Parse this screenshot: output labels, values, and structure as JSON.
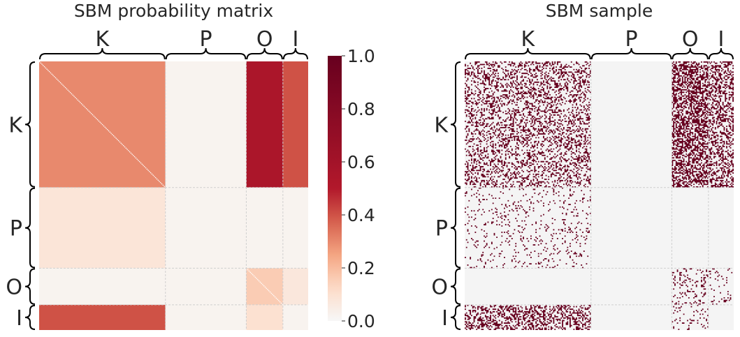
{
  "chart_data": [
    {
      "type": "heatmap",
      "title": "SBM probability matrix",
      "blocks": [
        "K",
        "P",
        "O",
        "I"
      ],
      "block_sizes": [
        100,
        64,
        29,
        20
      ],
      "matrix": [
        [
          0.3,
          0.02,
          0.55,
          0.4
        ],
        [
          0.08,
          0.02,
          0.02,
          0.02
        ],
        [
          0.02,
          0.02,
          0.16,
          0.07
        ],
        [
          0.4,
          0.02,
          0.1,
          0.02
        ]
      ],
      "self_loops_excluded": true,
      "colormap": "RdBu_r (upper half)",
      "colorbar": {
        "min": 0.0,
        "max": 1.0,
        "ticks": [
          "0.0",
          "0.2",
          "0.4",
          "0.6",
          "0.8",
          "1.0"
        ]
      },
      "colors": {
        "low": "#f7f7f7",
        "high": "#67001f"
      }
    },
    {
      "type": "heatmap",
      "title": "SBM sample",
      "subtype": "binary adjacency matrix",
      "blocks": [
        "K",
        "P",
        "O",
        "I"
      ],
      "block_sizes": [
        100,
        64,
        29,
        20
      ],
      "edge_probabilities": [
        [
          0.3,
          0.0,
          0.55,
          0.4
        ],
        [
          0.08,
          0.0,
          0.0,
          0.0
        ],
        [
          0.0,
          0.0,
          0.16,
          0.07
        ],
        [
          0.4,
          0.0,
          0.1,
          0.0
        ]
      ],
      "colors": {
        "edge": "#67001f",
        "no_edge": "#f4f4f4",
        "grid": "#d0d0d0"
      }
    }
  ]
}
